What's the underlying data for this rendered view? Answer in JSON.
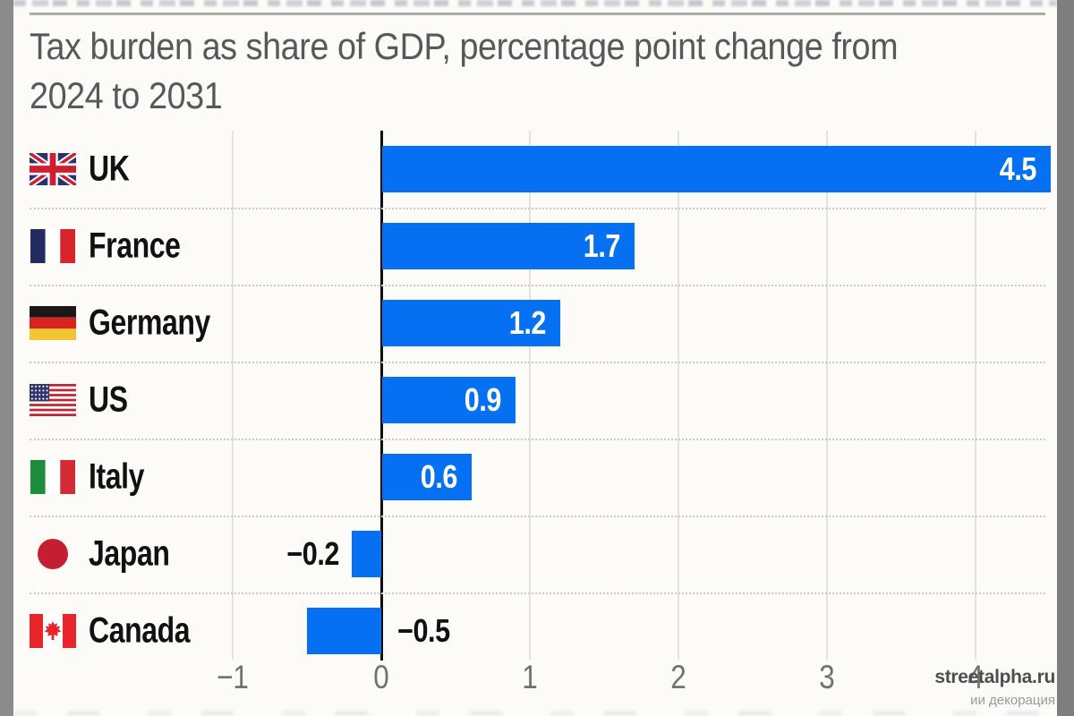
{
  "chart": {
    "title_lines": [
      "Tax burden as share of GDP, percentage point change from",
      "2024 to 2031"
    ]
  },
  "chart_data": {
    "type": "bar",
    "orientation": "horizontal",
    "title": "Tax burden as share of GDP, percentage point change from 2024 to 2031",
    "categories": [
      "UK",
      "France",
      "Germany",
      "US",
      "Italy",
      "Japan",
      "Canada"
    ],
    "values": [
      4.5,
      1.7,
      1.2,
      0.9,
      0.6,
      -0.2,
      -0.5
    ],
    "value_labels": [
      "4.5",
      "1.7",
      "1.2",
      "0.9",
      "0.6",
      "−0.2",
      "−0.5"
    ],
    "value_label_side": [
      "inside",
      "inside",
      "inside",
      "inside",
      "inside",
      "outside-left",
      "outside-right"
    ],
    "flag_icons": [
      "uk-flag-icon",
      "france-flag-icon",
      "germany-flag-icon",
      "us-flag-icon",
      "italy-flag-icon",
      "japan-flag-icon",
      "canada-flag-icon"
    ],
    "x_ticks": [
      -1,
      0,
      1,
      2,
      3,
      4
    ],
    "x_tick_labels": [
      "−1",
      "0",
      "1",
      "2",
      "3",
      "4"
    ],
    "xlim": [
      -1.4,
      4.6
    ],
    "xlabel": "",
    "ylabel": "",
    "grid": true,
    "legend": "none",
    "bar_color": "#0571F2"
  },
  "watermark": {
    "site": "streetalpha.ru",
    "caption": "ии декорация"
  }
}
